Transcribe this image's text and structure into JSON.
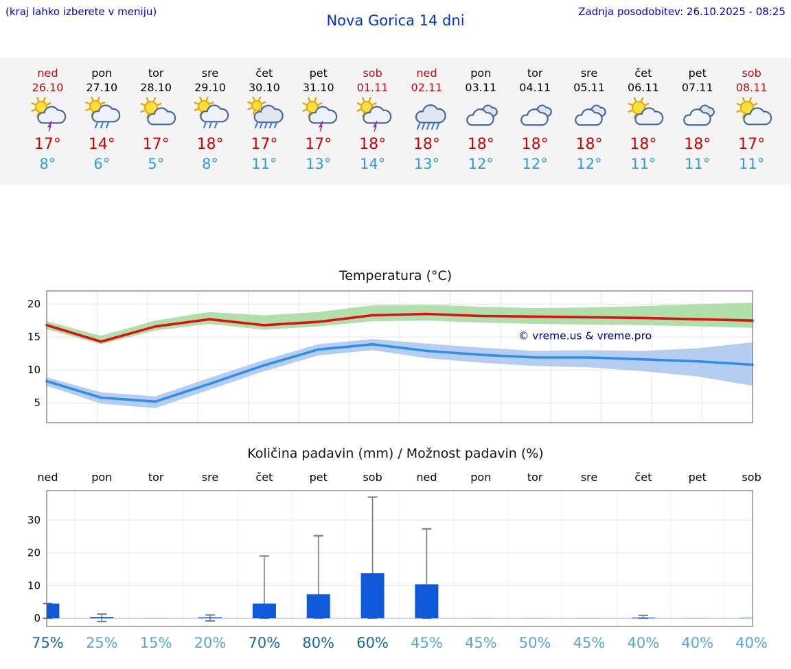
{
  "header": {
    "left_note": "(kraj lahko izberete v meniju)",
    "title": "Nova Gorica 14 dni",
    "last_update": "Zadnja posodobitev: 26.10.2025 - 08:25"
  },
  "colors": {
    "link_blue": "#0000cc",
    "title_blue": "#0033cc",
    "weekend_red": "#b50d0d",
    "high_red": "#d40000",
    "low_blue": "#2e9be0",
    "prob_dark": "#17689f",
    "prob_light": "#55a7d8"
  },
  "forecast": {
    "days": [
      {
        "day": "ned",
        "date": "26.10",
        "weekend": true,
        "icon": "sun-cloud-thunder",
        "high": "17°",
        "low": "8°"
      },
      {
        "day": "pon",
        "date": "27.10",
        "weekend": false,
        "icon": "sun-cloud-rain",
        "high": "14°",
        "low": "6°"
      },
      {
        "day": "tor",
        "date": "28.10",
        "weekend": false,
        "icon": "sun-cloud",
        "high": "17°",
        "low": "5°"
      },
      {
        "day": "sre",
        "date": "29.10",
        "weekend": false,
        "icon": "sun-cloud-rain",
        "high": "18°",
        "low": "8°"
      },
      {
        "day": "čet",
        "date": "30.10",
        "weekend": false,
        "icon": "sun-cloud-rain-heavy",
        "high": "17°",
        "low": "11°"
      },
      {
        "day": "pet",
        "date": "31.10",
        "weekend": false,
        "icon": "sun-cloud-thunder",
        "high": "17°",
        "low": "13°"
      },
      {
        "day": "sob",
        "date": "01.11",
        "weekend": true,
        "icon": "sun-cloud-thunder",
        "high": "18°",
        "low": "14°"
      },
      {
        "day": "ned",
        "date": "02.11",
        "weekend": true,
        "icon": "cloud-rain-heavy",
        "high": "18°",
        "low": "13°"
      },
      {
        "day": "pon",
        "date": "03.11",
        "weekend": false,
        "icon": "cloud",
        "high": "18°",
        "low": "12°"
      },
      {
        "day": "tor",
        "date": "04.11",
        "weekend": false,
        "icon": "cloud",
        "high": "18°",
        "low": "12°"
      },
      {
        "day": "sre",
        "date": "05.11",
        "weekend": false,
        "icon": "cloud",
        "high": "18°",
        "low": "12°"
      },
      {
        "day": "čet",
        "date": "06.11",
        "weekend": false,
        "icon": "sun-cloud",
        "high": "18°",
        "low": "11°"
      },
      {
        "day": "pet",
        "date": "07.11",
        "weekend": false,
        "icon": "cloud",
        "high": "18°",
        "low": "11°"
      },
      {
        "day": "sob",
        "date": "08.11",
        "weekend": true,
        "icon": "sun-cloud",
        "high": "17°",
        "low": "11°"
      }
    ]
  },
  "chart_data": [
    {
      "type": "line",
      "title": "Temperatura (°C)",
      "watermark": "© vreme.us & vreme.pro",
      "ylim": [
        2,
        22
      ],
      "yticks": [
        5,
        10,
        15,
        20
      ],
      "x_days": 14,
      "series": [
        {
          "name": "max-temp",
          "color": "#dd1111",
          "band_color": "#a9dba2",
          "values": [
            16.8,
            14.3,
            16.6,
            17.7,
            16.8,
            17.3,
            18.3,
            18.5,
            18.2,
            18.1,
            18.0,
            17.9,
            17.7,
            17.5
          ],
          "band_upper": [
            17.4,
            15.2,
            17.5,
            18.8,
            18.3,
            18.8,
            19.8,
            19.9,
            19.6,
            19.4,
            19.5,
            19.7,
            20.0,
            20.2
          ],
          "band_lower": [
            16.2,
            13.9,
            16.0,
            17.0,
            16.1,
            16.6,
            17.4,
            17.5,
            17.2,
            17.0,
            16.9,
            16.8,
            16.6,
            16.4
          ]
        },
        {
          "name": "min-temp",
          "color": "#2f8fe8",
          "band_color": "#adc8ee",
          "values": [
            8.3,
            5.8,
            5.2,
            7.9,
            10.7,
            13.1,
            13.9,
            12.9,
            12.3,
            11.9,
            11.9,
            11.6,
            11.3,
            10.8
          ],
          "band_upper": [
            8.9,
            6.6,
            6.0,
            8.8,
            11.5,
            13.9,
            14.7,
            14.0,
            13.4,
            12.9,
            13.0,
            12.9,
            13.3,
            14.2
          ],
          "band_lower": [
            7.6,
            4.9,
            4.2,
            7.0,
            9.8,
            12.2,
            13.0,
            11.8,
            11.1,
            10.6,
            10.4,
            9.8,
            9.0,
            7.6
          ]
        }
      ]
    },
    {
      "type": "bar",
      "title": "Količina padavin (mm) / Možnost padavin (%)",
      "categories": [
        "ned",
        "pon",
        "tor",
        "sre",
        "čet",
        "pet",
        "sob",
        "ned",
        "pon",
        "tor",
        "sre",
        "čet",
        "pet",
        "sob"
      ],
      "values": [
        4.5,
        0.4,
        0.05,
        0.3,
        4.5,
        7.3,
        13.8,
        10.4,
        0.05,
        0.05,
        0.05,
        0.2,
        0.05,
        0.1
      ],
      "whisker_max": [
        4.5,
        1.3,
        0.2,
        1.0,
        19.0,
        25.2,
        37.0,
        27.3,
        0.2,
        0.2,
        0.2,
        0.9,
        0.2,
        0.4
      ],
      "whisker_min": [
        0,
        -1.0,
        0,
        -0.8,
        0,
        0,
        0,
        0,
        0,
        0,
        0,
        0,
        0,
        0
      ],
      "probabilities": [
        "75%",
        "25%",
        "15%",
        "20%",
        "70%",
        "80%",
        "60%",
        "45%",
        "45%",
        "50%",
        "45%",
        "40%",
        "40%",
        "40%"
      ],
      "bar_color": "#1159d8",
      "whisker_color": "#7a7a7a",
      "ylim": [
        -2.5,
        39
      ],
      "yticks": [
        0,
        10,
        20,
        30
      ]
    }
  ]
}
